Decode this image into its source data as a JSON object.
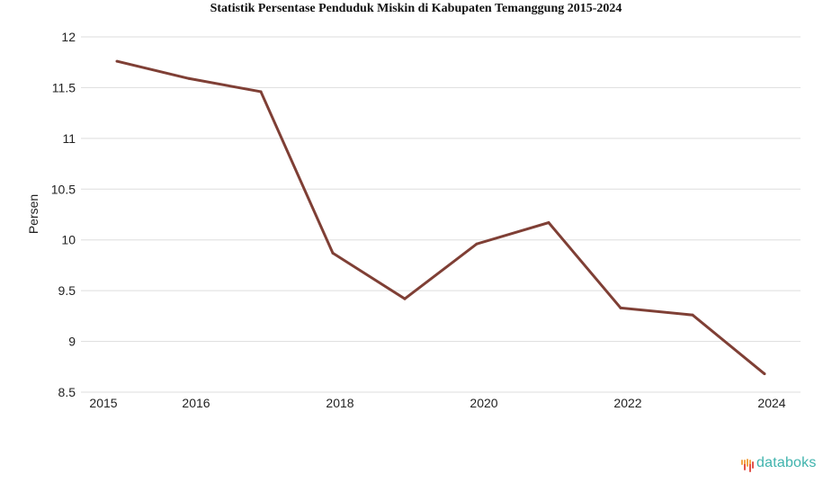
{
  "title": "Statistik Persentase Penduduk Miskin di Kabupaten Temanggung 2015-2024",
  "logo": {
    "text": "databoks",
    "icon": "databoks-bars-icon"
  },
  "colors": {
    "line": "#7f3f35",
    "grid": "#dddddd",
    "logo_text": "#3fb3ad",
    "logo_bars_top": "#f2a54a",
    "logo_bars_bottom": "#e2524a"
  },
  "chart_data": {
    "type": "line",
    "title": "Statistik Persentase Penduduk Miskin di Kabupaten Temanggung 2015-2024",
    "xlabel": "",
    "ylabel": "Persen",
    "x": [
      2015,
      2016,
      2017,
      2018,
      2019,
      2020,
      2021,
      2022,
      2023,
      2024
    ],
    "series": [
      {
        "name": "Persentase Penduduk Miskin",
        "values": [
          11.76,
          11.59,
          11.46,
          9.87,
          9.42,
          9.96,
          10.17,
          9.33,
          9.26,
          8.68
        ]
      }
    ],
    "ylim": [
      8.5,
      12
    ],
    "yticks": [
      8.5,
      9,
      9.5,
      10,
      10.5,
      11,
      11.5,
      12
    ],
    "ytick_labels": [
      "8.5",
      "9",
      "9.5",
      "10",
      "10.5",
      "11",
      "11.5",
      "12"
    ],
    "xtick_labels": [
      "2015",
      "2016",
      "2018",
      "2020",
      "2022",
      "2024"
    ],
    "xtick_values": [
      2014.8,
      2016,
      2018,
      2020,
      2022,
      2024
    ],
    "grid": true,
    "legend": "none"
  }
}
